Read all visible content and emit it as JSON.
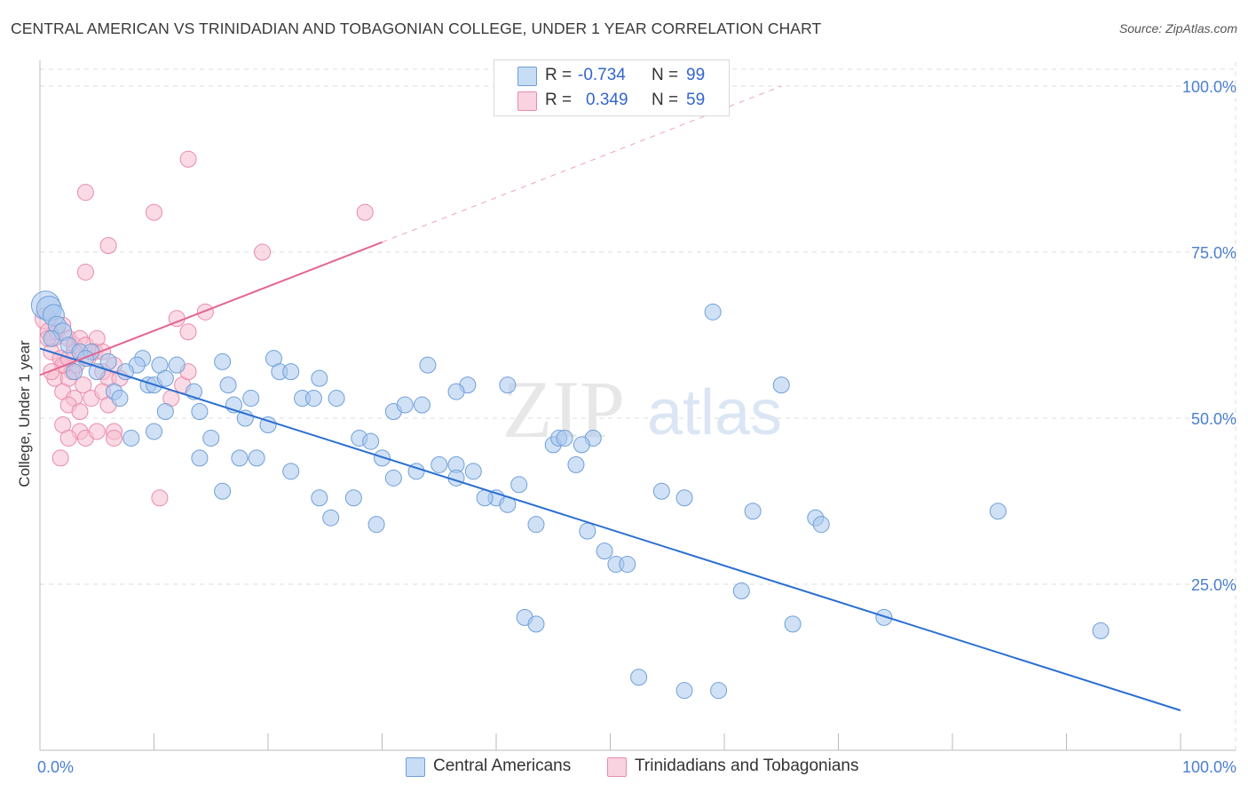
{
  "title": "CENTRAL AMERICAN VS TRINIDADIAN AND TOBAGONIAN COLLEGE, UNDER 1 YEAR CORRELATION CHART",
  "source": "Source: ZipAtlas.com",
  "watermark": {
    "zip": "ZIP",
    "atlas": "atlas"
  },
  "legend": {
    "row1": {
      "r_label": "R =",
      "r_value": "-0.734",
      "n_label": "N =",
      "n_value": "99"
    },
    "row2": {
      "r_label": "R =",
      "r_value": "0.349",
      "n_label": "N =",
      "n_value": "59"
    }
  },
  "bottom_legend": {
    "blue": "Central Americans",
    "pink": "Trinidadians and Tobagonians"
  },
  "colors": {
    "blue_fill": "#a9c8ef",
    "blue_stroke": "#6f9fd8",
    "blue_line": "#2a6fd1",
    "pink_fill": "#f6bdd0",
    "pink_stroke": "#ea8aab",
    "pink_line": "#e4648e",
    "tick_label": "#4a7fcf",
    "grid": "#dddddd"
  },
  "chart_data": {
    "type": "scatter",
    "title": "CENTRAL AMERICAN VS TRINIDADIAN AND TOBAGONIAN COLLEGE, UNDER 1 YEAR CORRELATION CHART",
    "xlabel": "",
    "ylabel": "College, Under 1 year",
    "xlim": [
      0,
      100
    ],
    "ylim": [
      0,
      105
    ],
    "x_tick_labels": [
      "0.0%",
      "100.0%"
    ],
    "y_ticks": [
      25,
      50,
      75,
      100
    ],
    "y_tick_labels": [
      "25.0%",
      "50.0%",
      "75.0%",
      "100.0%"
    ],
    "grid": true,
    "legend_position": "top-center",
    "series": [
      {
        "name": "Central Americans",
        "color": "#a9c8ef",
        "r": -0.734,
        "n": 99,
        "trend": {
          "x": [
            0,
            100
          ],
          "y": [
            60.5,
            6.0
          ],
          "dashed_to": null
        },
        "points": [
          [
            0.5,
            67,
            16
          ],
          [
            0.8,
            66.5,
            14
          ],
          [
            1.2,
            65.5,
            12
          ],
          [
            1.5,
            64,
            10
          ],
          [
            2.0,
            63,
            10
          ],
          [
            1.0,
            62,
            9
          ],
          [
            2.5,
            61,
            9
          ],
          [
            3.5,
            60,
            9
          ],
          [
            4.5,
            60,
            9
          ],
          [
            4.0,
            59,
            9
          ],
          [
            6.0,
            58.5,
            9
          ],
          [
            9.0,
            59,
            9
          ],
          [
            8.5,
            58,
            9
          ],
          [
            10.5,
            58,
            9
          ],
          [
            12.0,
            58,
            9
          ],
          [
            16.0,
            58.5,
            9
          ],
          [
            20.5,
            59,
            9
          ],
          [
            3.0,
            57,
            9
          ],
          [
            5.0,
            57,
            9
          ],
          [
            7.5,
            57,
            9
          ],
          [
            9.5,
            55,
            9
          ],
          [
            13.5,
            54,
            9
          ],
          [
            16.5,
            55,
            9
          ],
          [
            18.5,
            53,
            9
          ],
          [
            21.0,
            57,
            9
          ],
          [
            23.0,
            53,
            9
          ],
          [
            6.5,
            54,
            9
          ],
          [
            10.0,
            55,
            9
          ],
          [
            14.0,
            51,
            9
          ],
          [
            11.0,
            51,
            9
          ],
          [
            7.0,
            53,
            9
          ],
          [
            22.0,
            57,
            9
          ],
          [
            24.0,
            53,
            9
          ],
          [
            26.0,
            53,
            9
          ],
          [
            28.0,
            47,
            9
          ],
          [
            29.0,
            46.5,
            9
          ],
          [
            31.0,
            51,
            9
          ],
          [
            32.0,
            52,
            9
          ],
          [
            33.5,
            52,
            9
          ],
          [
            37.5,
            55,
            9
          ],
          [
            41.0,
            55,
            9
          ],
          [
            34.0,
            58,
            9
          ],
          [
            36.5,
            54,
            9
          ],
          [
            24.5,
            56,
            9
          ],
          [
            11.0,
            56,
            9
          ],
          [
            17.0,
            52,
            9
          ],
          [
            18.0,
            50,
            9
          ],
          [
            20.0,
            49,
            9
          ],
          [
            15.0,
            47,
            9
          ],
          [
            10.0,
            48,
            9
          ],
          [
            8.0,
            47,
            9
          ],
          [
            14.0,
            44,
            9
          ],
          [
            16.0,
            39,
            9
          ],
          [
            17.5,
            44,
            9
          ],
          [
            19.0,
            44,
            9
          ],
          [
            22.0,
            42,
            9
          ],
          [
            24.5,
            38,
            9
          ],
          [
            25.5,
            35,
            9
          ],
          [
            27.5,
            38,
            9
          ],
          [
            29.5,
            34,
            9
          ],
          [
            31.0,
            41,
            9
          ],
          [
            30.0,
            44,
            9
          ],
          [
            33.0,
            42,
            9
          ],
          [
            35.0,
            43,
            9
          ],
          [
            36.5,
            43,
            9
          ],
          [
            38.0,
            42,
            9
          ],
          [
            40.0,
            38,
            9
          ],
          [
            39.0,
            38,
            9
          ],
          [
            36.5,
            41,
            9
          ],
          [
            41.0,
            37,
            9
          ],
          [
            42.0,
            40,
            9
          ],
          [
            43.5,
            34,
            9
          ],
          [
            45.0,
            46,
            9
          ],
          [
            45.5,
            47,
            9
          ],
          [
            46.0,
            47,
            9
          ],
          [
            47.0,
            43,
            9
          ],
          [
            48.5,
            47,
            9
          ],
          [
            48.0,
            33,
            9
          ],
          [
            49.5,
            30,
            9
          ],
          [
            50.5,
            28,
            9
          ],
          [
            51.5,
            28,
            9
          ],
          [
            59.0,
            66,
            9
          ],
          [
            65.0,
            55,
            9
          ],
          [
            47.5,
            46,
            9
          ],
          [
            54.5,
            39,
            9
          ],
          [
            56.5,
            38,
            9
          ],
          [
            62.5,
            36,
            9
          ],
          [
            61.5,
            24,
            9
          ],
          [
            68.0,
            35,
            9
          ],
          [
            68.5,
            34,
            9
          ],
          [
            74.0,
            20,
            9
          ],
          [
            42.5,
            20,
            9
          ],
          [
            43.5,
            19,
            9
          ],
          [
            52.5,
            11,
            9
          ],
          [
            56.5,
            9,
            9
          ],
          [
            59.5,
            9,
            9
          ],
          [
            66.0,
            19,
            9
          ],
          [
            84.0,
            36,
            9
          ],
          [
            93.0,
            18,
            9
          ]
        ]
      },
      {
        "name": "Trinidadians and Tobagonians",
        "color": "#f6bdd0",
        "r": 0.349,
        "n": 59,
        "trend": {
          "x": [
            0,
            30
          ],
          "y": [
            56.5,
            76.5
          ],
          "dashed_to": [
            65,
            100
          ]
        },
        "points": [
          [
            0.5,
            65,
            12
          ],
          [
            0.8,
            63,
            10
          ],
          [
            1.2,
            62,
            9
          ],
          [
            1.5,
            63,
            9
          ],
          [
            2.0,
            64,
            9
          ],
          [
            2.5,
            62,
            9
          ],
          [
            3.0,
            61,
            9
          ],
          [
            3.5,
            62,
            9
          ],
          [
            4.0,
            61,
            9
          ],
          [
            5.0,
            62,
            9
          ],
          [
            1.0,
            60,
            9
          ],
          [
            1.8,
            59,
            9
          ],
          [
            2.2,
            58,
            9
          ],
          [
            2.8,
            57,
            9
          ],
          [
            3.2,
            58,
            9
          ],
          [
            4.2,
            59,
            9
          ],
          [
            4.8,
            60,
            9
          ],
          [
            5.5,
            57,
            9
          ],
          [
            6.5,
            58,
            9
          ],
          [
            1.3,
            56,
            9
          ],
          [
            2.5,
            56,
            9
          ],
          [
            3.8,
            55,
            9
          ],
          [
            6.0,
            56,
            9
          ],
          [
            7.0,
            56,
            9
          ],
          [
            2.0,
            54,
            9
          ],
          [
            3.0,
            53,
            9
          ],
          [
            4.5,
            53,
            9
          ],
          [
            5.5,
            54,
            9
          ],
          [
            2.5,
            52,
            9
          ],
          [
            3.5,
            51,
            9
          ],
          [
            6.0,
            52,
            9
          ],
          [
            2.0,
            49,
            9
          ],
          [
            3.5,
            48,
            9
          ],
          [
            6.5,
            48,
            9
          ],
          [
            2.5,
            47,
            9
          ],
          [
            4.0,
            47,
            9
          ],
          [
            5.0,
            48,
            9
          ],
          [
            6.5,
            47,
            9
          ],
          [
            1.8,
            44,
            9
          ],
          [
            10.5,
            38,
            9
          ],
          [
            11.5,
            53,
            9
          ],
          [
            12.5,
            55,
            9
          ],
          [
            13.0,
            57,
            9
          ],
          [
            12.0,
            65,
            9
          ],
          [
            13.0,
            63,
            9
          ],
          [
            14.5,
            66,
            9
          ],
          [
            5.5,
            60,
            9
          ],
          [
            4.0,
            72,
            9
          ],
          [
            6.0,
            76,
            9
          ],
          [
            4.0,
            84,
            9
          ],
          [
            10.0,
            81,
            9
          ],
          [
            13.0,
            89,
            9
          ],
          [
            19.5,
            75,
            9
          ],
          [
            28.5,
            81,
            9
          ],
          [
            2.0,
            58,
            9
          ],
          [
            1.0,
            57,
            9
          ],
          [
            3.0,
            60,
            9
          ],
          [
            2.5,
            59,
            9
          ],
          [
            0.7,
            62,
            9
          ]
        ]
      }
    ]
  }
}
